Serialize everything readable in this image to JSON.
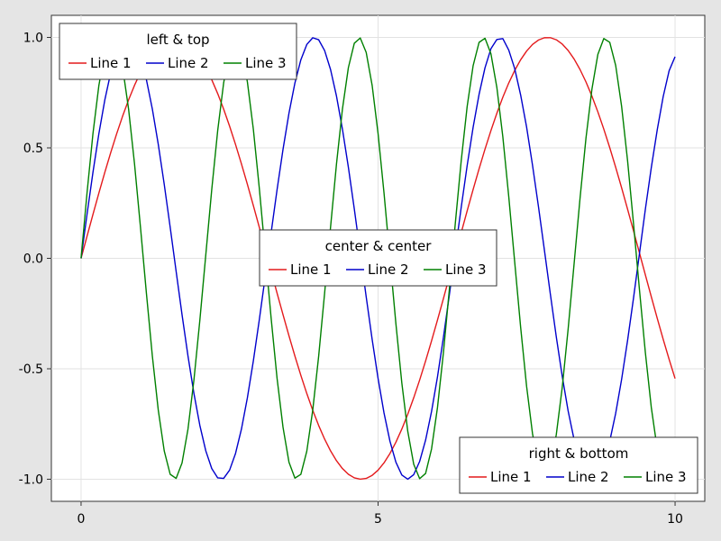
{
  "chart_data": {
    "type": "line",
    "title": "",
    "xlabel": "",
    "ylabel": "",
    "xlim": [
      -0.5,
      10.5
    ],
    "ylim": [
      -1.1,
      1.1
    ],
    "grid": true,
    "x_ticks": [
      0,
      5,
      10
    ],
    "x_tick_labels": [
      "0",
      "5",
      "10"
    ],
    "y_ticks": [
      -1.0,
      -0.5,
      0.0,
      0.5,
      1.0
    ],
    "y_tick_labels": [
      "-1.0",
      "-0.5",
      "0.0",
      "0.5",
      "1.0"
    ],
    "x": [
      0,
      0.1,
      0.2,
      0.3,
      0.4,
      0.5,
      0.6,
      0.7,
      0.8,
      0.9,
      1.0,
      1.1,
      1.2,
      1.3,
      1.4,
      1.5,
      1.6,
      1.7,
      1.8,
      1.9,
      2.0,
      2.1,
      2.2,
      2.3,
      2.4,
      2.5,
      2.6,
      2.7,
      2.8,
      2.9,
      3.0,
      3.1,
      3.2,
      3.3,
      3.4,
      3.5,
      3.6,
      3.7,
      3.8,
      3.9,
      4.0,
      4.1,
      4.2,
      4.3,
      4.4,
      4.5,
      4.6,
      4.7,
      4.8,
      4.9,
      5.0,
      5.1,
      5.2,
      5.3,
      5.4,
      5.5,
      5.6,
      5.7,
      5.8,
      5.9,
      6.0,
      6.1,
      6.2,
      6.3,
      6.4,
      6.5,
      6.6,
      6.7,
      6.8,
      6.9,
      7.0,
      7.1,
      7.2,
      7.3,
      7.4,
      7.5,
      7.6,
      7.7,
      7.8,
      7.9,
      8.0,
      8.1,
      8.2,
      8.3,
      8.4,
      8.5,
      8.6,
      8.7,
      8.8,
      8.9,
      9.0,
      9.1,
      9.2,
      9.3,
      9.4,
      9.5,
      9.6,
      9.7,
      9.8,
      9.9,
      10.0
    ],
    "series": [
      {
        "name": "Line 1",
        "color": "#e41a1c",
        "values": [
          0.0,
          0.0998,
          0.1987,
          0.2955,
          0.3894,
          0.4794,
          0.5646,
          0.6442,
          0.7174,
          0.7833,
          0.8415,
          0.8912,
          0.932,
          0.9636,
          0.9854,
          0.9975,
          0.9996,
          0.9917,
          0.9738,
          0.9463,
          0.9093,
          0.8632,
          0.8085,
          0.7457,
          0.6755,
          0.5985,
          0.5155,
          0.4274,
          0.335,
          0.2392,
          0.1411,
          0.0416,
          -0.0584,
          -0.1577,
          -0.2555,
          -0.3508,
          -0.4425,
          -0.5298,
          -0.6119,
          -0.6878,
          -0.7568,
          -0.8183,
          -0.8716,
          -0.9162,
          -0.9516,
          -0.9775,
          -0.9937,
          -0.9999,
          -0.9962,
          -0.9825,
          -0.9589,
          -0.9258,
          -0.8835,
          -0.8323,
          -0.7728,
          -0.7055,
          -0.6313,
          -0.5507,
          -0.4646,
          -0.3739,
          -0.2794,
          -0.1822,
          -0.0831,
          0.0168,
          0.1165,
          0.2151,
          0.3115,
          0.4048,
          0.494,
          0.5784,
          0.657,
          0.729,
          0.7937,
          0.8504,
          0.8987,
          0.938,
          0.968,
          0.9882,
          0.9985,
          0.9989,
          0.9894,
          0.9699,
          0.9407,
          0.9022,
          0.8546,
          0.7985,
          0.7344,
          0.663,
          0.5849,
          0.501,
          0.4121,
          0.319,
          0.2229,
          0.1245,
          0.0248,
          -0.0752,
          -0.1743,
          -0.2718,
          -0.3665,
          -0.4575,
          -0.544
        ]
      },
      {
        "name": "Line 2",
        "color": "#0000cc",
        "values": [
          0.0,
          0.1987,
          0.3894,
          0.5646,
          0.7174,
          0.8415,
          0.932,
          0.9854,
          0.9996,
          0.9738,
          0.9093,
          0.8085,
          0.6755,
          0.5155,
          0.335,
          0.1411,
          -0.0584,
          -0.2555,
          -0.4425,
          -0.6119,
          -0.7568,
          -0.8716,
          -0.9516,
          -0.9937,
          -0.9962,
          -0.9589,
          -0.8835,
          -0.7728,
          -0.6313,
          -0.4646,
          -0.2794,
          -0.0831,
          0.1165,
          0.3115,
          0.494,
          0.657,
          0.7937,
          0.8987,
          0.968,
          0.9985,
          0.9894,
          0.9407,
          0.8546,
          0.7344,
          0.5849,
          0.4121,
          0.2229,
          0.0248,
          -0.1743,
          -0.3665,
          -0.544,
          -0.6999,
          -0.8278,
          -0.9228,
          -0.9809,
          -0.9999,
          -0.9792,
          -0.9193,
          -0.8228,
          -0.6935,
          -0.5366,
          -0.3582,
          -0.1656,
          0.0336,
          0.2313,
          0.4202,
          0.5928,
          0.7421,
          0.8624,
          0.9488,
          0.9906,
          0.9945,
          0.9427,
          0.8588,
          0.7396,
          0.5949,
          0.4217,
          0.2344,
          0.0373,
          -0.1616,
          -0.3549,
          -0.5336,
          -0.6912,
          -0.8207,
          -0.9177,
          -0.9778,
          -0.9988,
          -0.9806,
          -0.9224,
          -0.8278,
          -0.7014,
          -0.5477,
          -0.3723,
          -0.1806,
          0.0207,
          0.2228,
          0.4112,
          0.5823,
          0.7321,
          0.8493,
          0.9129
        ]
      },
      {
        "name": "Line 3",
        "color": "#008000",
        "values": [
          0.0,
          0.2955,
          0.5646,
          0.7833,
          0.932,
          0.9975,
          0.9738,
          0.8632,
          0.6755,
          0.4274,
          0.1411,
          -0.1577,
          -0.4425,
          -0.6878,
          -0.8716,
          -0.9775,
          -0.9962,
          -0.9258,
          -0.7728,
          -0.5507,
          -0.2794,
          0.0168,
          0.3115,
          0.5784,
          0.7937,
          0.938,
          0.9894,
          0.9407,
          0.7985,
          0.5849,
          0.319,
          0.0248,
          -0.2718,
          -0.544,
          -0.7654,
          -0.9228,
          -0.995,
          -0.9778,
          -0.8733,
          -0.6878,
          -0.4425,
          -0.1577,
          0.1411,
          0.4274,
          0.6755,
          0.8632,
          0.9738,
          0.9975,
          0.932,
          0.7833,
          0.5646,
          0.2955,
          0.0,
          -0.2955,
          -0.5646,
          -0.7833,
          -0.932,
          -0.9975,
          -0.9738,
          -0.8632,
          -0.6755,
          -0.4274,
          -0.1411,
          0.1577,
          0.4425,
          0.6878,
          0.8716,
          0.9775,
          0.9962,
          0.9258,
          0.7728,
          0.5507,
          0.2794,
          -0.0168,
          -0.3115,
          -0.5784,
          -0.7937,
          -0.938,
          -0.9894,
          -0.9407,
          -0.7985,
          -0.5849,
          -0.319,
          -0.0248,
          0.2718,
          0.544,
          0.7654,
          0.9228,
          0.995,
          0.9778,
          0.8733,
          0.6878,
          0.4425,
          0.1577,
          -0.1411,
          -0.4274,
          -0.6755,
          -0.8632,
          -0.9738,
          -0.9975,
          -0.932
        ]
      }
    ],
    "legends": [
      {
        "title": "left & top",
        "placement": "left-top",
        "entries": [
          "Line 1",
          "Line 2",
          "Line 3"
        ]
      },
      {
        "title": "center & center",
        "placement": "center-center",
        "entries": [
          "Line 1",
          "Line 2",
          "Line 3"
        ]
      },
      {
        "title": "right & bottom",
        "placement": "right-bottom",
        "entries": [
          "Line 1",
          "Line 2",
          "Line 3"
        ]
      }
    ]
  }
}
